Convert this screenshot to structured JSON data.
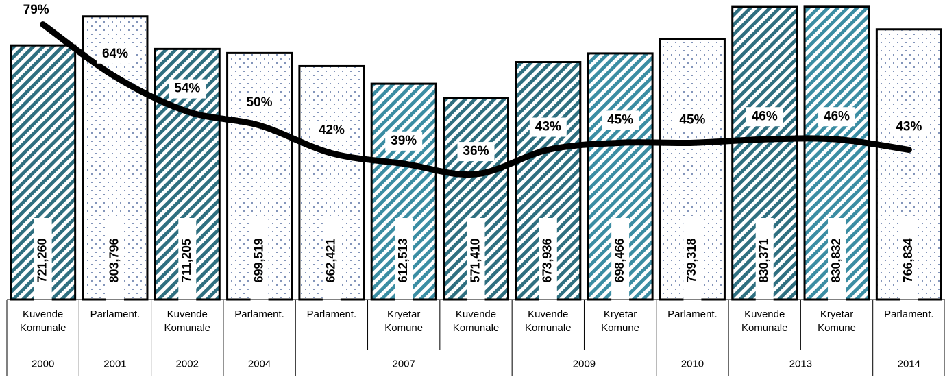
{
  "chart_data": {
    "type": "bar_line",
    "groups": [
      {
        "label": "2000",
        "categories": [
          "Kuvende Komunale"
        ]
      },
      {
        "label": "2001",
        "categories": [
          "Parlament."
        ]
      },
      {
        "label": "2002",
        "categories": [
          "Kuvende Komunale"
        ]
      },
      {
        "label": "2004",
        "categories": [
          "Parlament."
        ]
      },
      {
        "label": "2007",
        "categories": [
          "Parlament.",
          "Kryetar Komune",
          "Kuvende Komunale"
        ]
      },
      {
        "label": "2009",
        "categories": [
          "Kuvende Komunale",
          "Kryetar Komune"
        ]
      },
      {
        "label": "2010",
        "categories": [
          "Parlament."
        ]
      },
      {
        "label": "2013",
        "categories": [
          "Kuvende Komunale",
          "Kryetar Komune"
        ]
      },
      {
        "label": "2014",
        "categories": [
          "Parlament."
        ]
      }
    ],
    "series": [
      {
        "type": "bar",
        "values": [
          721260,
          803796,
          711205,
          699519,
          662421,
          612513,
          571410,
          673936,
          698466,
          739318,
          830371,
          830832,
          766834
        ],
        "value_labels": [
          "721,260",
          "803,796",
          "711,205",
          "699,519",
          "662,421",
          "612,513",
          "571,410",
          "673,936",
          "698,466",
          "739,318",
          "830,371",
          "830,832",
          "766,834"
        ],
        "fills": [
          "hatch",
          "dots",
          "hatch",
          "dots",
          "dots",
          "hatch",
          "hatch",
          "hatch",
          "hatch",
          "dots",
          "hatch",
          "hatch",
          "dots"
        ],
        "colors": [
          "#2f6f80",
          "#2b4a8a",
          "#2f6f80",
          "#2b4a8a",
          "#2b4a8a",
          "#3b8da3",
          "#2f6f80",
          "#2f6f80",
          "#3b8da3",
          "#2b4a8a",
          "#2f6f80",
          "#3b8da3",
          "#2b4a8a"
        ]
      },
      {
        "type": "line",
        "axis": "y2",
        "color": "#000000",
        "values": [
          79,
          64,
          54,
          50,
          42,
          39,
          36,
          43,
          45,
          45,
          46,
          46,
          43
        ],
        "value_labels": [
          "79%",
          "64%",
          "54%",
          "50%",
          "42%",
          "39%",
          "36%",
          "43%",
          "45%",
          "45%",
          "46%",
          "46%",
          "43%"
        ]
      }
    ],
    "ylim": [
      0,
      850000
    ],
    "y2lim": [
      0,
      86
    ]
  }
}
